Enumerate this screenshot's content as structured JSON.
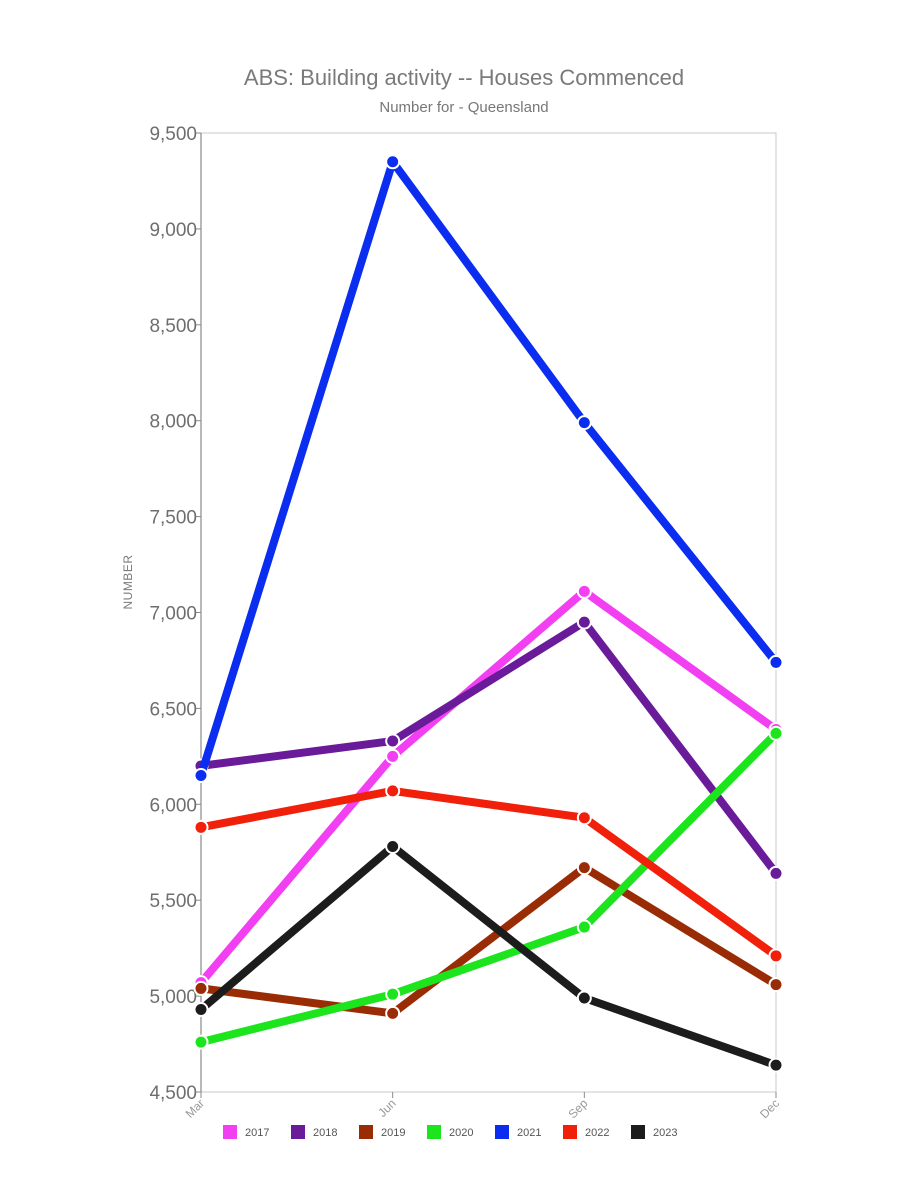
{
  "chart_data": {
    "type": "line",
    "title": "ABS: Building activity -- Houses Commenced",
    "subtitle": "Number for - Queensland",
    "xlabel": "",
    "ylabel": "NUMBER",
    "categories": [
      "Mar",
      "Jun",
      "Sep",
      "Dec"
    ],
    "ylim": [
      4500,
      9500
    ],
    "yticks": [
      4500,
      5000,
      5500,
      6000,
      6500,
      7000,
      7500,
      8000,
      8500,
      9000,
      9500
    ],
    "ytick_labels": [
      "4,500",
      "5,000",
      "5,500",
      "6,000",
      "6,500",
      "7,000",
      "7,500",
      "8,000",
      "8,500",
      "9,000",
      "9,500"
    ],
    "grid": false,
    "legend_position": "bottom",
    "series": [
      {
        "name": "2017",
        "color": "#f23ff2",
        "values": [
          5070,
          6250,
          7110,
          6390
        ]
      },
      {
        "name": "2018",
        "color": "#6a1b9a",
        "values": [
          6200,
          6330,
          6950,
          5640
        ]
      },
      {
        "name": "2019",
        "color": "#9a2c05",
        "values": [
          5040,
          4910,
          5670,
          5060
        ]
      },
      {
        "name": "2020",
        "color": "#1de51d",
        "values": [
          4760,
          5010,
          5360,
          6370
        ]
      },
      {
        "name": "2021",
        "color": "#0a2df0",
        "values": [
          6150,
          9350,
          7990,
          6740
        ]
      },
      {
        "name": "2022",
        "color": "#f0200a",
        "values": [
          5880,
          6070,
          5930,
          5210
        ]
      },
      {
        "name": "2023",
        "color": "#1c1c1c",
        "values": [
          4930,
          5780,
          4990,
          4640
        ]
      }
    ]
  }
}
